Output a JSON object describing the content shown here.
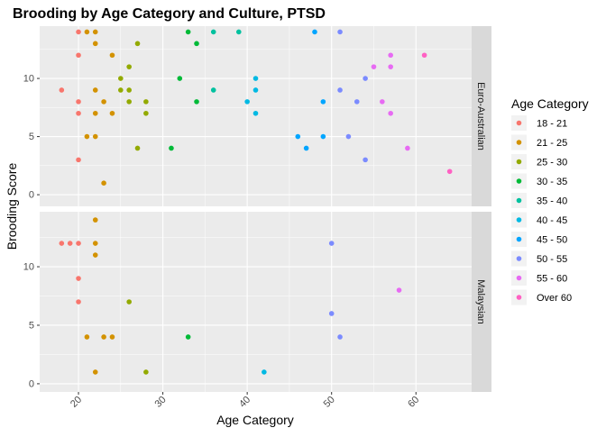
{
  "chart_data": {
    "type": "scatter",
    "title": "Brooding by Age Category and Culture, PTSD",
    "xlabel": "Age Category",
    "ylabel": "Brooding Score",
    "x_ticks": [
      20,
      30,
      40,
      50,
      60
    ],
    "y_ticks": [
      0,
      5,
      10
    ],
    "xlim": [
      15.4,
      66.6
    ],
    "legend_title": "Age Category",
    "legend_position": "right",
    "grid": true,
    "categories": [
      {
        "name": "18 - 21",
        "color": "#F8766D"
      },
      {
        "name": "21 - 25",
        "color": "#D39200"
      },
      {
        "name": "25 - 30",
        "color": "#93AA00"
      },
      {
        "name": "30 - 35",
        "color": "#00BA38"
      },
      {
        "name": "35 - 40",
        "color": "#00C19F"
      },
      {
        "name": "40 - 45",
        "color": "#00B9E3"
      },
      {
        "name": "45 - 50",
        "color": "#00A5FF"
      },
      {
        "name": "50 - 55",
        "color": "#7B8BFF"
      },
      {
        "name": "55 - 60",
        "color": "#E76BF3"
      },
      {
        "name": "Over 60",
        "color": "#FF61C3"
      }
    ],
    "panels": [
      {
        "strip": "Euro-Australian",
        "ylim": [
          -1,
          14.5
        ],
        "points": [
          {
            "x": 20,
            "y": 14,
            "c": 0
          },
          {
            "x": 20,
            "y": 12,
            "c": 0
          },
          {
            "x": 18,
            "y": 9,
            "c": 0
          },
          {
            "x": 20,
            "y": 8,
            "c": 0
          },
          {
            "x": 20,
            "y": 7,
            "c": 0
          },
          {
            "x": 20,
            "y": 3,
            "c": 0
          },
          {
            "x": 21,
            "y": 14,
            "c": 1
          },
          {
            "x": 22,
            "y": 14,
            "c": 1
          },
          {
            "x": 22,
            "y": 13,
            "c": 1
          },
          {
            "x": 24,
            "y": 12,
            "c": 1
          },
          {
            "x": 22,
            "y": 9,
            "c": 1
          },
          {
            "x": 23,
            "y": 8,
            "c": 1
          },
          {
            "x": 22,
            "y": 7,
            "c": 1
          },
          {
            "x": 24,
            "y": 7,
            "c": 1
          },
          {
            "x": 21,
            "y": 5,
            "c": 1
          },
          {
            "x": 22,
            "y": 5,
            "c": 1
          },
          {
            "x": 23,
            "y": 1,
            "c": 1
          },
          {
            "x": 27,
            "y": 13,
            "c": 2
          },
          {
            "x": 26,
            "y": 11,
            "c": 2
          },
          {
            "x": 25,
            "y": 10,
            "c": 2
          },
          {
            "x": 25,
            "y": 9,
            "c": 2
          },
          {
            "x": 26,
            "y": 9,
            "c": 2
          },
          {
            "x": 26,
            "y": 8,
            "c": 2
          },
          {
            "x": 28,
            "y": 8,
            "c": 2
          },
          {
            "x": 28,
            "y": 7,
            "c": 2
          },
          {
            "x": 27,
            "y": 4,
            "c": 2
          },
          {
            "x": 33,
            "y": 14,
            "c": 3
          },
          {
            "x": 34,
            "y": 13,
            "c": 3
          },
          {
            "x": 32,
            "y": 10,
            "c": 3
          },
          {
            "x": 34,
            "y": 8,
            "c": 3
          },
          {
            "x": 31,
            "y": 4,
            "c": 3
          },
          {
            "x": 36,
            "y": 14,
            "c": 4
          },
          {
            "x": 39,
            "y": 14,
            "c": 4
          },
          {
            "x": 36,
            "y": 9,
            "c": 4
          },
          {
            "x": 41,
            "y": 10,
            "c": 5
          },
          {
            "x": 41,
            "y": 9,
            "c": 5
          },
          {
            "x": 40,
            "y": 8,
            "c": 5
          },
          {
            "x": 41,
            "y": 7,
            "c": 5
          },
          {
            "x": 48,
            "y": 14,
            "c": 6
          },
          {
            "x": 49,
            "y": 8,
            "c": 6
          },
          {
            "x": 46,
            "y": 5,
            "c": 6
          },
          {
            "x": 49,
            "y": 5,
            "c": 6
          },
          {
            "x": 47,
            "y": 4,
            "c": 6
          },
          {
            "x": 51,
            "y": 14,
            "c": 7
          },
          {
            "x": 54,
            "y": 10,
            "c": 7
          },
          {
            "x": 51,
            "y": 9,
            "c": 7
          },
          {
            "x": 53,
            "y": 8,
            "c": 7
          },
          {
            "x": 52,
            "y": 5,
            "c": 7
          },
          {
            "x": 54,
            "y": 3,
            "c": 7
          },
          {
            "x": 57,
            "y": 12,
            "c": 8
          },
          {
            "x": 55,
            "y": 11,
            "c": 8
          },
          {
            "x": 57,
            "y": 11,
            "c": 8
          },
          {
            "x": 56,
            "y": 8,
            "c": 8
          },
          {
            "x": 57,
            "y": 7,
            "c": 8
          },
          {
            "x": 59,
            "y": 4,
            "c": 8
          },
          {
            "x": 61,
            "y": 12,
            "c": 9
          },
          {
            "x": 64,
            "y": 2,
            "c": 9
          }
        ]
      },
      {
        "strip": "Malaysian",
        "ylim": [
          -0.7,
          14.7
        ],
        "points": [
          {
            "x": 18,
            "y": 12,
            "c": 0
          },
          {
            "x": 19,
            "y": 12,
            "c": 0
          },
          {
            "x": 20,
            "y": 12,
            "c": 0
          },
          {
            "x": 20,
            "y": 9,
            "c": 0
          },
          {
            "x": 20,
            "y": 7,
            "c": 0
          },
          {
            "x": 22,
            "y": 14,
            "c": 1
          },
          {
            "x": 22,
            "y": 12,
            "c": 1
          },
          {
            "x": 22,
            "y": 11,
            "c": 1
          },
          {
            "x": 21,
            "y": 4,
            "c": 1
          },
          {
            "x": 23,
            "y": 4,
            "c": 1
          },
          {
            "x": 24,
            "y": 4,
            "c": 1
          },
          {
            "x": 22,
            "y": 1,
            "c": 1
          },
          {
            "x": 26,
            "y": 7,
            "c": 2
          },
          {
            "x": 28,
            "y": 1,
            "c": 2
          },
          {
            "x": 33,
            "y": 4,
            "c": 3
          },
          {
            "x": 42,
            "y": 1,
            "c": 5
          },
          {
            "x": 50,
            "y": 12,
            "c": 7
          },
          {
            "x": 50,
            "y": 6,
            "c": 7
          },
          {
            "x": 51,
            "y": 4,
            "c": 7
          },
          {
            "x": 58,
            "y": 8,
            "c": 8
          }
        ]
      }
    ]
  }
}
